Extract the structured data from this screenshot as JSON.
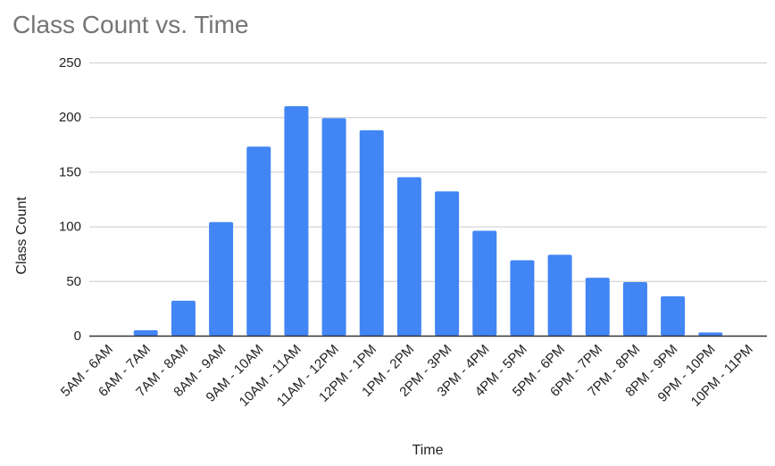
{
  "chart_data": {
    "type": "bar",
    "title": "Class Count vs. Time",
    "xlabel": "Time",
    "ylabel": "Class Count",
    "ylim": [
      0,
      250
    ],
    "yticks": [
      0,
      50,
      100,
      150,
      200,
      250
    ],
    "grid": true,
    "legend": "none",
    "bar_color": "#4285f4",
    "categories": [
      "5AM - 6AM",
      "6AM - 7AM",
      "7AM - 8AM",
      "8AM - 9AM",
      "9AM - 10AM",
      "10AM - 11AM",
      "11AM - 12PM",
      "12PM - 1PM",
      "1PM - 2PM",
      "2PM - 3PM",
      "3PM - 4PM",
      "4PM - 5PM",
      "5PM - 6PM",
      "6PM - 7PM",
      "7PM - 8PM",
      "8PM - 9PM",
      "9PM - 10PM",
      "10PM - 11PM"
    ],
    "values": [
      0,
      5,
      32,
      104,
      173,
      210,
      199,
      188,
      145,
      132,
      96,
      69,
      74,
      53,
      49,
      36,
      3,
      0
    ]
  }
}
